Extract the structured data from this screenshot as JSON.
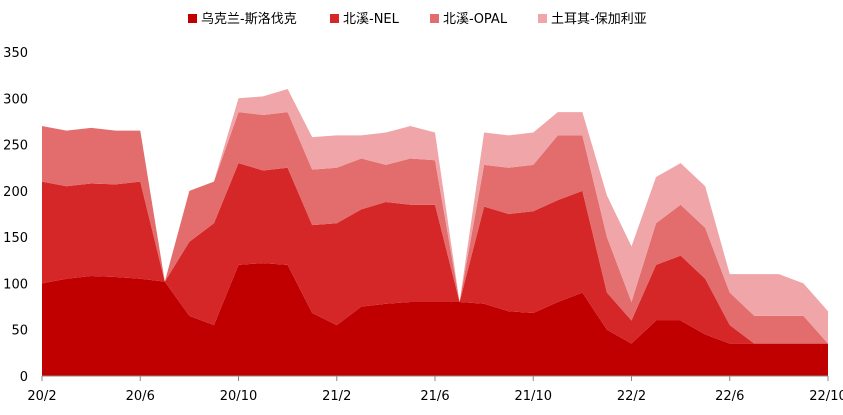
{
  "chart_data": {
    "type": "area",
    "stacked": true,
    "legend": {
      "position": "top",
      "entries": [
        "乌克兰-斯洛伐克",
        "北溪-NEL",
        "北溪-OPAL",
        "土耳其-保加利亚"
      ]
    },
    "colors": [
      "#c00000",
      "#d62728",
      "#e36c6c",
      "#f0a5a8"
    ],
    "x_tick_labels": [
      "20/2",
      "20/6",
      "20/10",
      "21/2",
      "21/6",
      "21/10",
      "22/2",
      "22/6",
      "22/10"
    ],
    "y_tick_labels": [
      "0",
      "50",
      "100",
      "150",
      "200",
      "250",
      "300",
      "350"
    ],
    "ylim": [
      0,
      350
    ],
    "grid": false,
    "x": [
      "2020-02",
      "2020-03",
      "2020-04",
      "2020-05",
      "2020-06",
      "2020-07",
      "2020-08",
      "2020-09",
      "2020-10",
      "2020-11",
      "2020-12",
      "2021-01",
      "2021-02",
      "2021-03",
      "2021-04",
      "2021-05",
      "2021-06",
      "2021-07",
      "2021-08",
      "2021-09",
      "2021-10",
      "2021-11",
      "2021-12",
      "2022-01",
      "2022-02",
      "2022-03",
      "2022-04",
      "2022-05",
      "2022-06",
      "2022-07",
      "2022-08",
      "2022-09",
      "2022-10"
    ],
    "series": [
      {
        "name": "乌克兰-斯洛伐克",
        "values": [
          100,
          105,
          108,
          107,
          105,
          102,
          65,
          55,
          120,
          122,
          120,
          68,
          55,
          75,
          78,
          80,
          80,
          80,
          78,
          70,
          68,
          80,
          90,
          50,
          35,
          60,
          60,
          45,
          35,
          35,
          35,
          35,
          35
        ]
      },
      {
        "name": "北溪-NEL",
        "values": [
          110,
          100,
          100,
          100,
          105,
          0,
          80,
          110,
          110,
          100,
          105,
          95,
          110,
          105,
          110,
          105,
          105,
          0,
          105,
          105,
          110,
          110,
          110,
          40,
          25,
          60,
          70,
          60,
          20,
          0,
          0,
          0,
          0
        ]
      },
      {
        "name": "北溪-OPAL",
        "values": [
          60,
          60,
          60,
          58,
          55,
          0,
          55,
          45,
          55,
          60,
          60,
          60,
          60,
          55,
          40,
          50,
          48,
          0,
          45,
          50,
          50,
          70,
          60,
          60,
          20,
          45,
          55,
          55,
          35,
          30,
          30,
          30,
          0
        ]
      },
      {
        "name": "土耳其-保加利亚",
        "values": [
          0,
          0,
          0,
          0,
          0,
          0,
          0,
          0,
          15,
          20,
          25,
          35,
          35,
          25,
          35,
          35,
          30,
          0,
          35,
          35,
          35,
          25,
          25,
          45,
          60,
          50,
          45,
          45,
          20,
          45,
          45,
          35,
          35
        ]
      }
    ]
  }
}
